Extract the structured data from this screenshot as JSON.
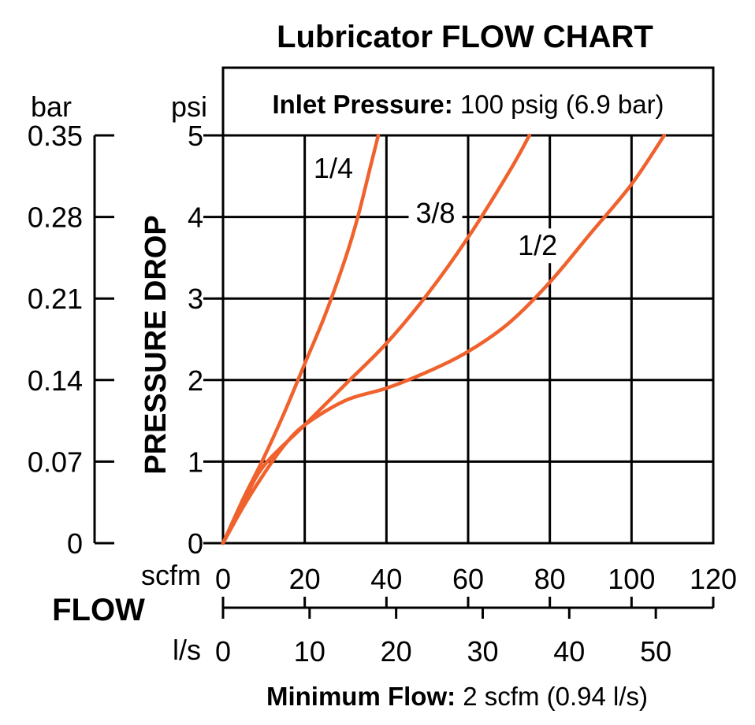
{
  "chart_data": {
    "type": "line",
    "title": "Lubricator FLOW CHART",
    "note": {
      "label": "Inlet Pressure:",
      "value": "100 psig (6.9 bar)"
    },
    "ylabel": "PRESSURE DROP",
    "y_unit_primary": "psi",
    "y_unit_secondary": "bar",
    "y_ticks_primary": [
      "0",
      "1",
      "2",
      "3",
      "4",
      "5"
    ],
    "y_ticks_secondary": [
      "0",
      "0.07",
      "0.14",
      "0.21",
      "0.28",
      "0.35"
    ],
    "xlabel": "FLOW",
    "x_unit_primary": "scfm",
    "x_unit_secondary": "l/s",
    "x_ticks_primary": [
      "0",
      "20",
      "40",
      "60",
      "80",
      "100",
      "120"
    ],
    "x_ticks_secondary": [
      "0",
      "10",
      "20",
      "30",
      "40",
      "50"
    ],
    "footnote": {
      "label": "Minimum Flow:",
      "value": "2 scfm (0.94 l/s)"
    },
    "xlim": [
      0,
      120
    ],
    "ylim": [
      0,
      5
    ],
    "grid": true,
    "line_color": "#f0622d",
    "series": [
      {
        "name": "1/4",
        "x": [
          0,
          5,
          10,
          15,
          20,
          25,
          30,
          33,
          36,
          38
        ],
        "y": [
          0,
          0.55,
          1.05,
          1.6,
          2.2,
          2.8,
          3.5,
          4.0,
          4.6,
          5.0
        ]
      },
      {
        "name": "3/8",
        "x": [
          0,
          5,
          10,
          20,
          30,
          40,
          50,
          60,
          70,
          75
        ],
        "y": [
          0,
          0.5,
          0.95,
          1.45,
          1.95,
          2.45,
          3.05,
          3.75,
          4.55,
          5.0
        ]
      },
      {
        "name": "1/2",
        "x": [
          0,
          5,
          10,
          15,
          20,
          30,
          40,
          50,
          60,
          70,
          80,
          90,
          100,
          108
        ],
        "y": [
          0,
          0.45,
          0.85,
          1.2,
          1.45,
          1.75,
          1.9,
          2.1,
          2.35,
          2.7,
          3.2,
          3.8,
          4.4,
          5.0
        ]
      }
    ]
  }
}
